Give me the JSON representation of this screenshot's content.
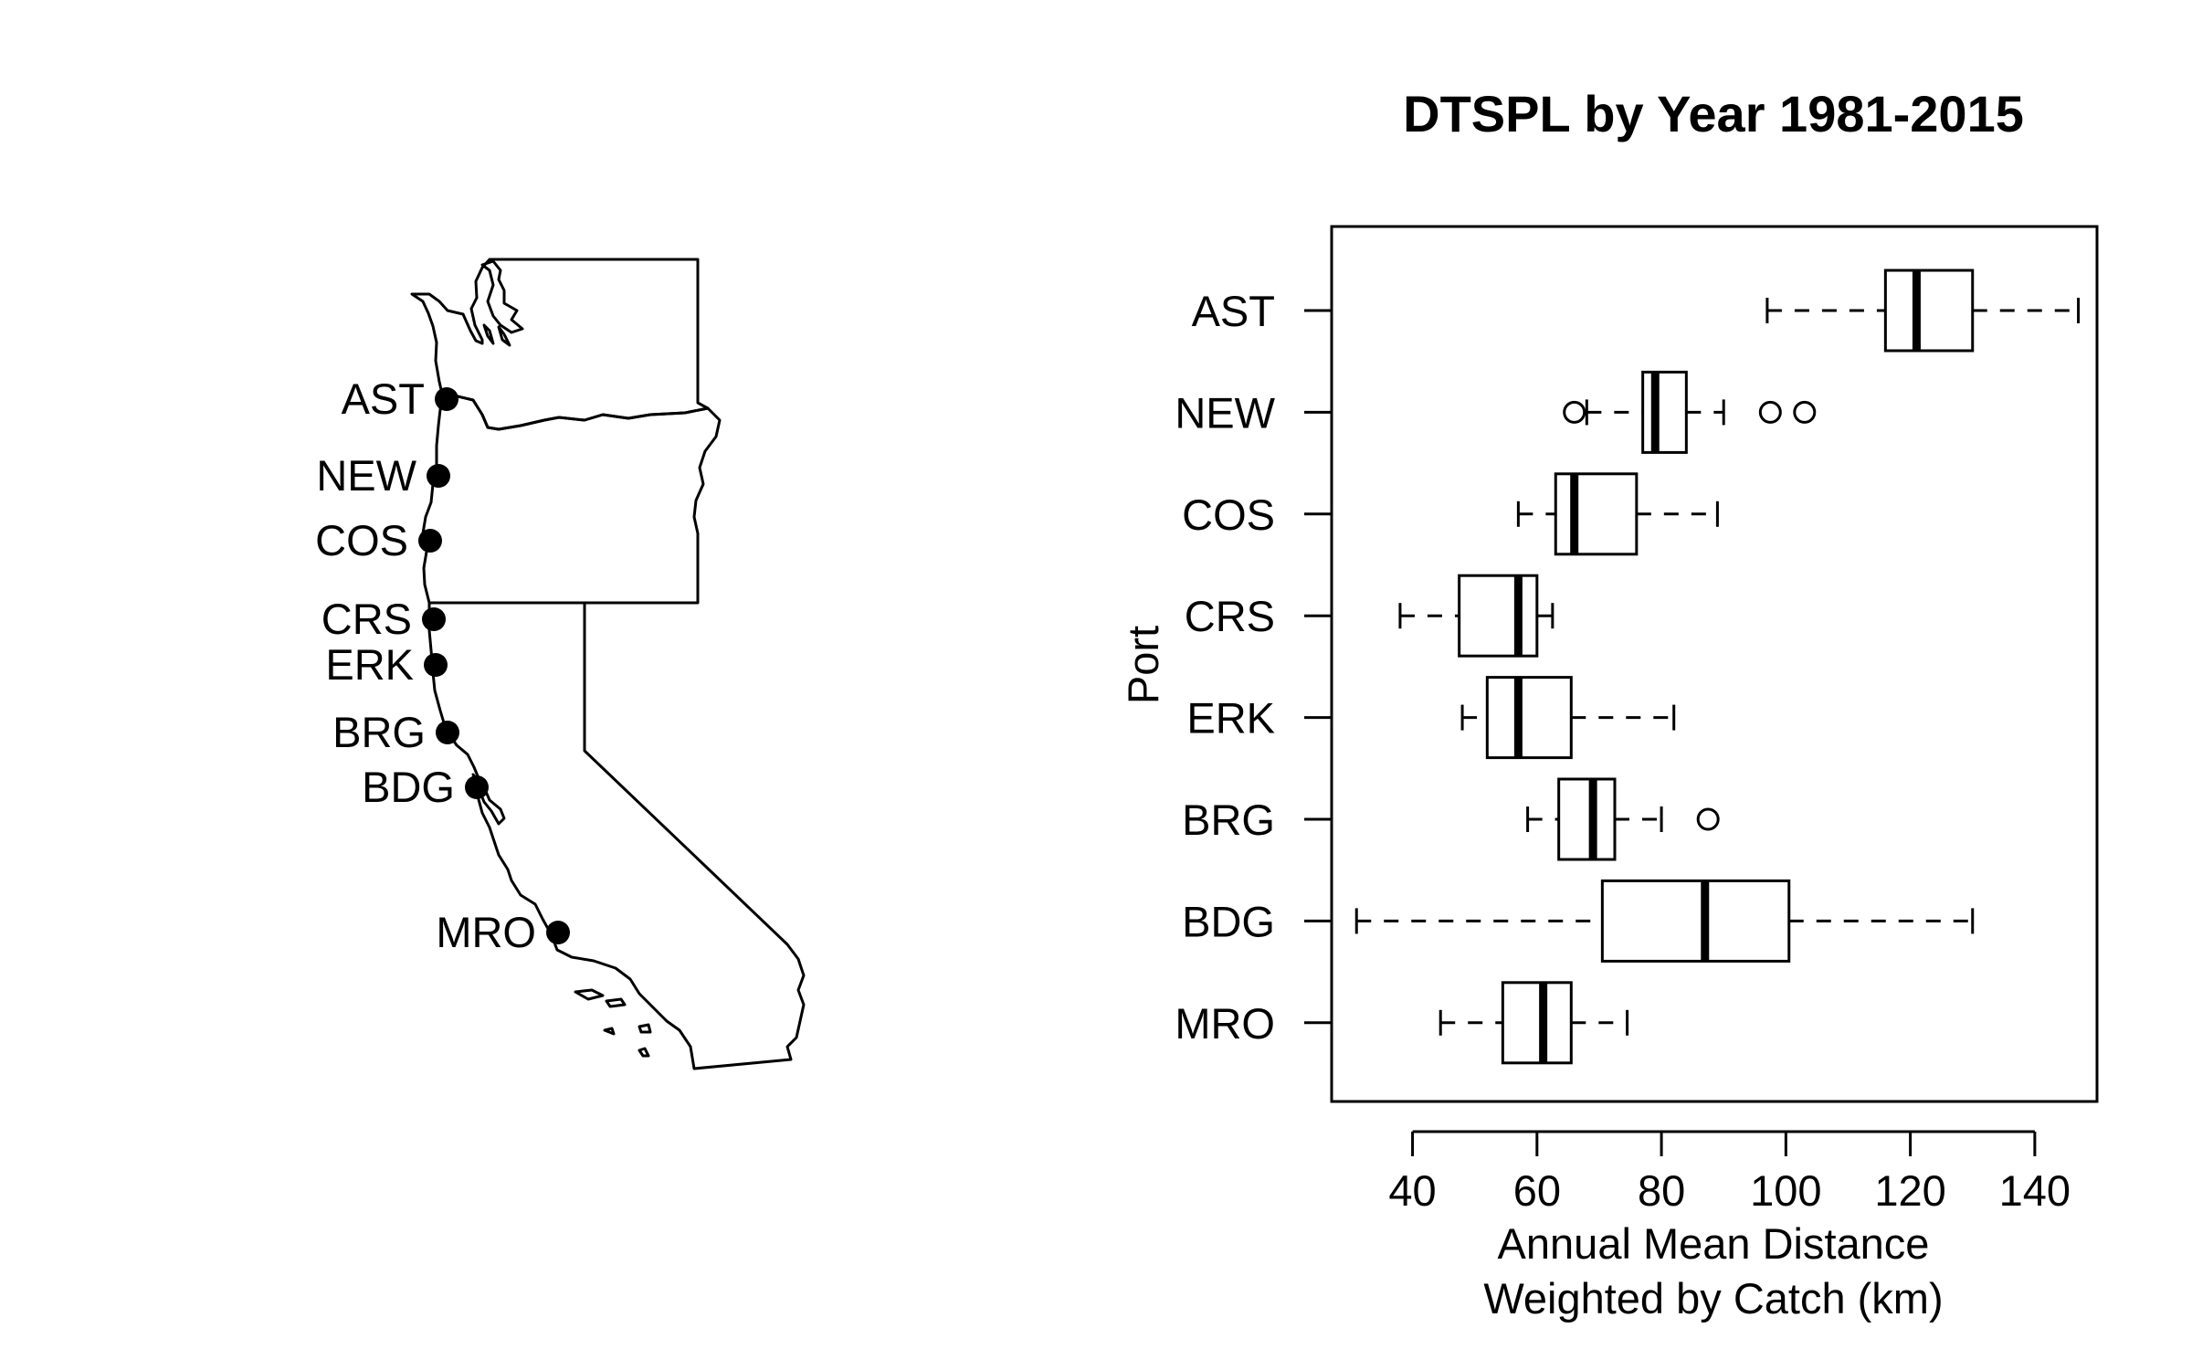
{
  "map": {
    "ports": [
      {
        "label": "AST"
      },
      {
        "label": "NEW"
      },
      {
        "label": "COS"
      },
      {
        "label": "CRS"
      },
      {
        "label": "ERK"
      },
      {
        "label": "BRG"
      },
      {
        "label": "BDG"
      },
      {
        "label": "MRO"
      }
    ]
  },
  "chart_data": {
    "type": "boxplot",
    "title": "DTSPL by Year 1981-2015",
    "xlabel_line1": "Annual Mean Distance",
    "xlabel_line2": "Weighted by Catch (km)",
    "ylabel": "Port",
    "xlim": [
      27,
      150
    ],
    "xticks": [
      40,
      60,
      80,
      100,
      120,
      140
    ],
    "categories": [
      "AST",
      "NEW",
      "COS",
      "CRS",
      "ERK",
      "BRG",
      "BDG",
      "MRO"
    ],
    "boxes": [
      {
        "port": "AST",
        "whisker_low": 97,
        "q1": 116,
        "median": 121,
        "q3": 130,
        "whisker_high": 147,
        "outliers": []
      },
      {
        "port": "NEW",
        "whisker_low": 68,
        "q1": 77,
        "median": 79,
        "q3": 84,
        "whisker_high": 90,
        "outliers": [
          66,
          97.5,
          103
        ]
      },
      {
        "port": "COS",
        "whisker_low": 57,
        "q1": 63,
        "median": 66,
        "q3": 76,
        "whisker_high": 89,
        "outliers": []
      },
      {
        "port": "CRS",
        "whisker_low": 38,
        "q1": 47.5,
        "median": 57,
        "q3": 60,
        "whisker_high": 62.5,
        "outliers": []
      },
      {
        "port": "ERK",
        "whisker_low": 48,
        "q1": 52,
        "median": 57,
        "q3": 65.5,
        "whisker_high": 82,
        "outliers": []
      },
      {
        "port": "BRG",
        "whisker_low": 58.5,
        "q1": 63.5,
        "median": 69,
        "q3": 72.5,
        "whisker_high": 80,
        "outliers": [
          87.5
        ]
      },
      {
        "port": "BDG",
        "whisker_low": 31,
        "q1": 70.5,
        "median": 87,
        "q3": 100.5,
        "whisker_high": 130,
        "outliers": []
      },
      {
        "port": "MRO",
        "whisker_low": 44.5,
        "q1": 54.5,
        "median": 61,
        "q3": 65.5,
        "whisker_high": 74.5,
        "outliers": []
      }
    ]
  }
}
